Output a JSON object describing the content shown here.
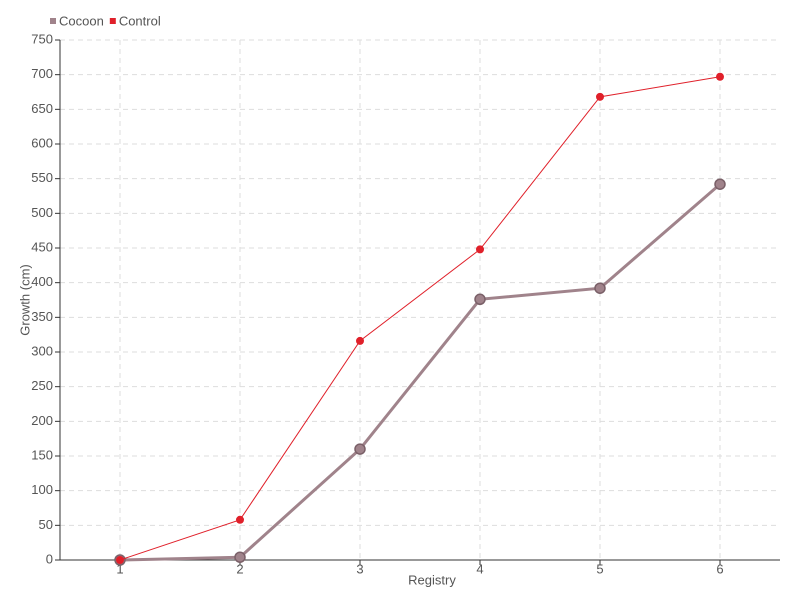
{
  "chart_data": {
    "type": "line",
    "x_label": "Registry",
    "y_label": "Growth (cm)",
    "categories": [
      "1",
      "2",
      "3",
      "4",
      "5",
      "6"
    ],
    "series": [
      {
        "name": "Cocoon",
        "color": "#a0838b",
        "values": [
          0,
          4,
          160,
          376,
          392,
          542
        ]
      },
      {
        "name": "Control",
        "color": "#e0202a",
        "values": [
          0,
          58,
          316,
          448,
          668,
          697
        ]
      }
    ],
    "ylim": [
      0,
      750
    ],
    "yticks": [
      0,
      50,
      100,
      150,
      200,
      250,
      300,
      350,
      400,
      450,
      500,
      550,
      600,
      650,
      700,
      750
    ],
    "grid": true,
    "legend": "top-left"
  }
}
